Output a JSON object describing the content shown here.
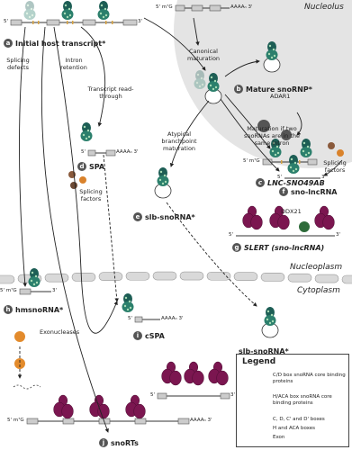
{
  "compartments": {
    "nucleolus": "Nucleolus",
    "nucleoplasm": "Nucleoplasm",
    "cytoplasm": "Cytoplasm"
  },
  "products": [
    {
      "letter": "a",
      "label": "Initial host transcript*"
    },
    {
      "letter": "b",
      "label": "Mature snoRNP*"
    },
    {
      "letter": "c",
      "label": "LNC-SNO49AB"
    },
    {
      "letter": "d",
      "label": "SPA"
    },
    {
      "letter": "e",
      "label": "slb-snoRNA*"
    },
    {
      "letter": "f",
      "label": "sno-lncRNA"
    },
    {
      "letter": "g",
      "label": "SLERT (sno-lncRNA)"
    },
    {
      "letter": "h",
      "label": "hmsnoRNA*"
    },
    {
      "letter": "i",
      "label": "cSPA"
    },
    {
      "letter": "j",
      "label": "snoRTs"
    }
  ],
  "processes": {
    "canonical": "Canonical maturation",
    "two_snornas": "Maturation if two snoRNAs are in the same intron",
    "atypical": "Atypical branchpoint maturation",
    "read_through": "Transcript read-through",
    "intron_retention": "Intron retention",
    "splicing_defects": "Splicing defects"
  },
  "factors": {
    "adar1": "ADAR1",
    "splicing_factors": "Splicing factors",
    "ddx21": "DDX21",
    "exonucleases": "Exonucleases"
  },
  "exported": "slb-snoRNA*",
  "rna_labels": {
    "five_prime": "5'",
    "three_prime": "3'",
    "cap": "5' m⁷G",
    "poly_a": "AAAAₙ 3'"
  },
  "legend": {
    "title": "Legend",
    "items": [
      "C/D box snoRNA core binding proteins",
      "H/ACA box snoRNA core binding proteins",
      "C, D, C' and D' boxes",
      "H and ACA boxes",
      "Exon"
    ]
  }
}
